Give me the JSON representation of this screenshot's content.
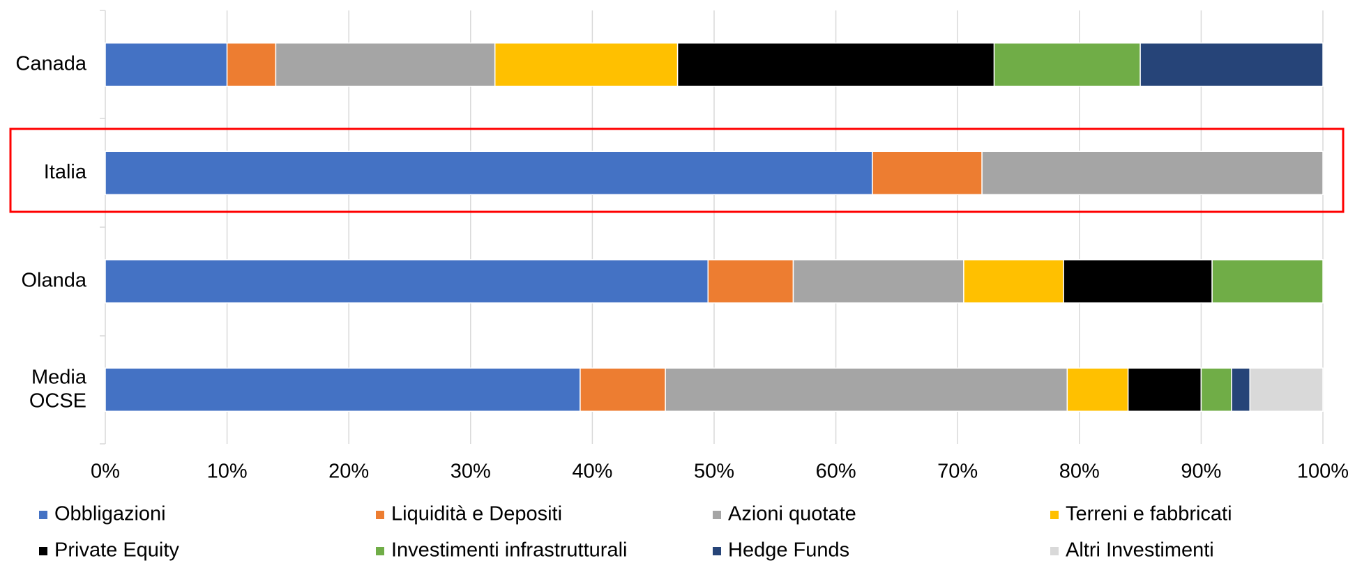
{
  "chart_data": {
    "type": "stacked_barh",
    "categories": [
      "Canada",
      "Italia",
      "Olanda",
      "Media OCSE"
    ],
    "series": [
      {
        "name": "Obbligazioni",
        "color": "#4472c4",
        "values": [
          10,
          63,
          49.5,
          39
        ]
      },
      {
        "name": "Liquidità e Depositi",
        "color": "#ed7d31",
        "values": [
          4,
          9,
          7,
          7
        ]
      },
      {
        "name": "Azioni quotate",
        "color": "#a5a5a5",
        "values": [
          18,
          28,
          14,
          33
        ]
      },
      {
        "name": "Terreni e fabbricati",
        "color": "#ffc000",
        "values": [
          15,
          0,
          8.2,
          5
        ]
      },
      {
        "name": "Private Equity",
        "color": "#000000",
        "values": [
          26,
          0,
          12.2,
          6
        ]
      },
      {
        "name": "Investimenti infrastrutturali",
        "color": "#70ad47",
        "values": [
          12,
          0,
          9.1,
          2.5
        ]
      },
      {
        "name": "Hedge Funds",
        "color": "#264478",
        "values": [
          15,
          0,
          0,
          1.5
        ]
      },
      {
        "name": "Altri Investimenti",
        "color": "#d9d9d9",
        "values": [
          0,
          0,
          0,
          6
        ]
      }
    ],
    "xlim": [
      0,
      100
    ],
    "xticks": [
      {
        "value": 0,
        "label": "0%"
      },
      {
        "value": 10,
        "label": "10%"
      },
      {
        "value": 20,
        "label": "20%"
      },
      {
        "value": 30,
        "label": "30%"
      },
      {
        "value": 40,
        "label": "40%"
      },
      {
        "value": 50,
        "label": "50%"
      },
      {
        "value": 60,
        "label": "60%"
      },
      {
        "value": 70,
        "label": "70%"
      },
      {
        "value": 80,
        "label": "80%"
      },
      {
        "value": 90,
        "label": "90%"
      },
      {
        "value": 100,
        "label": "100%"
      }
    ],
    "grid": true,
    "legend": "bottom"
  }
}
